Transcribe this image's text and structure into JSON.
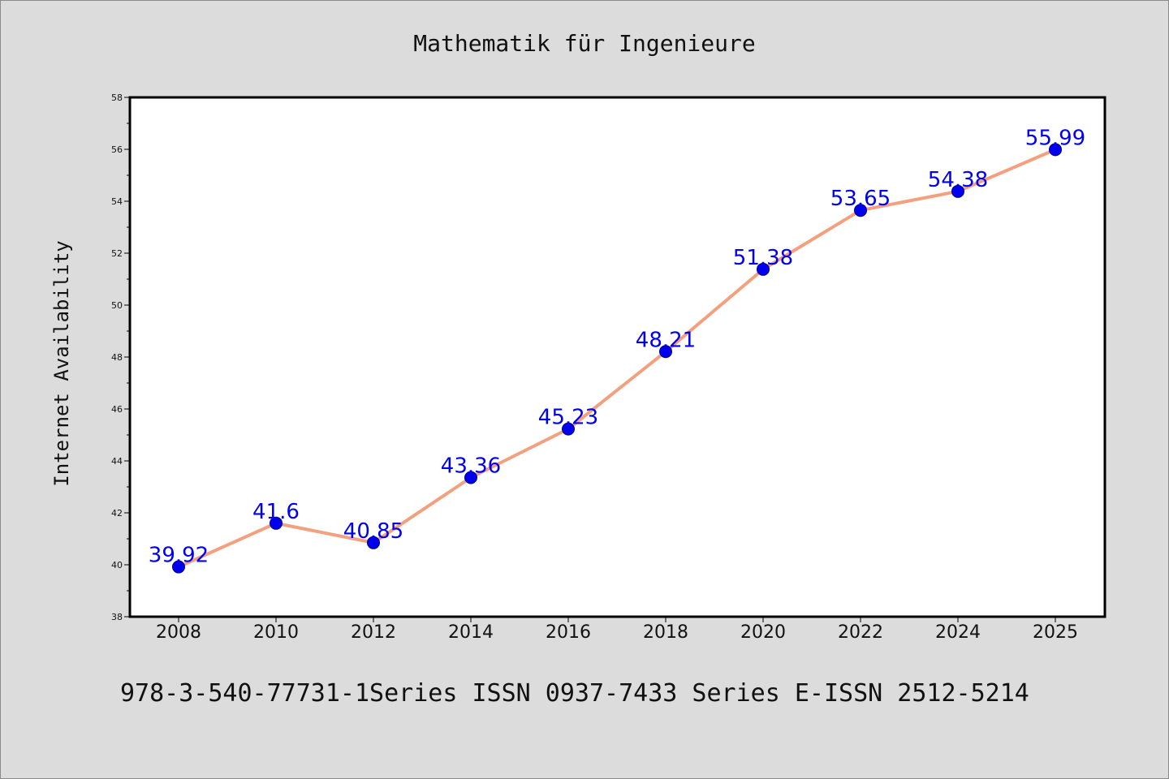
{
  "chart_data": {
    "type": "line",
    "title": "Mathematik für Ingenieure",
    "xlabel": "",
    "ylabel": "Internet Availability",
    "categories": [
      "2008",
      "2010",
      "2012",
      "2014",
      "2016",
      "2018",
      "2020",
      "2022",
      "2024",
      "2025"
    ],
    "series": [
      {
        "values": [
          39.92,
          41.6,
          40.85,
          43.36,
          45.23,
          48.21,
          51.38,
          53.65,
          54.38,
          55.99
        ],
        "data_labels": [
          "39.92",
          "41.6",
          "40.85",
          "43.36",
          "45.23",
          "48.21",
          "51.38",
          "53.65",
          "54.38",
          "55.99"
        ]
      }
    ],
    "ylim": [
      38,
      58
    ],
    "yticks": [
      "38",
      "40",
      "42",
      "44",
      "46",
      "48",
      "50",
      "52",
      "54",
      "56",
      "58"
    ],
    "grid": false,
    "line_color": "#f4a07f",
    "marker_color": "#0000ee",
    "label_color": "#0000ee",
    "background_color": "#dcdcdc",
    "plot_background": "#ffffff"
  },
  "footer": "978-3-540-77731-1Series ISSN 0937-7433 Series E-ISSN 2512-5214"
}
